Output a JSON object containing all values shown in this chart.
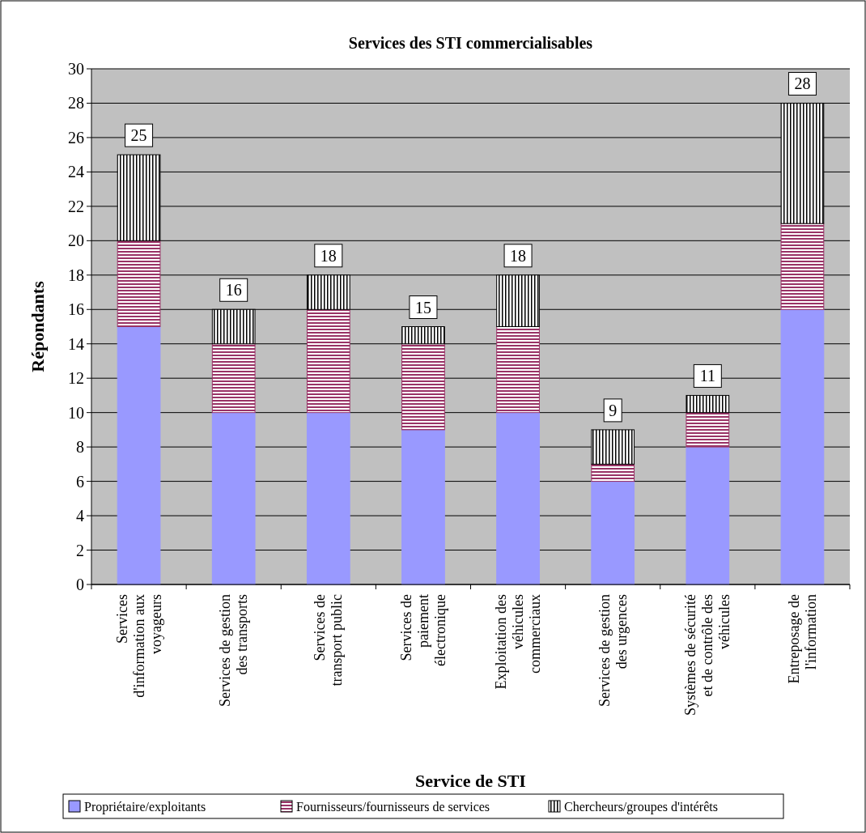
{
  "chart_data": {
    "type": "bar",
    "title": "Services des STI commercialisables",
    "xlabel": "Service de STI",
    "ylabel": "Répondants",
    "categories": [
      "Services\nd'information aux\nvoyageurs",
      "Services de gestion\ndes transports",
      "Services de\ntransport public",
      "Services de\npaiement\nélectronique",
      "Exploitation des\nvéhicules\ncommerciaux",
      "Services de gestion\ndes urgences",
      "Systèmes de sécurité\net de contrôle des\nvéhicules",
      "Entreposage de\nl'information"
    ],
    "stacked": true,
    "series": [
      {
        "name": "Propriétaire/exploitants",
        "color": "#9999ff",
        "values": [
          15,
          10,
          10,
          9,
          10,
          6,
          8,
          16
        ]
      },
      {
        "name": "Fournisseurs/fournisseurs de services",
        "color": "#993366",
        "values": [
          5,
          4,
          6,
          5,
          5,
          1,
          2,
          5
        ]
      },
      {
        "name": "Chercheurs/groupes d'intérêts",
        "color": "#000000",
        "values": [
          5,
          2,
          2,
          1,
          3,
          2,
          1,
          7
        ]
      }
    ],
    "totals": [
      "25",
      "16",
      "18",
      "15",
      "18",
      "9",
      "11",
      "28"
    ],
    "ylim": [
      0,
      30
    ],
    "yticks": [
      0,
      2,
      4,
      6,
      8,
      10,
      12,
      14,
      16,
      18,
      20,
      22,
      24,
      26,
      28,
      30
    ],
    "grid": "y",
    "legend": "bottom"
  }
}
